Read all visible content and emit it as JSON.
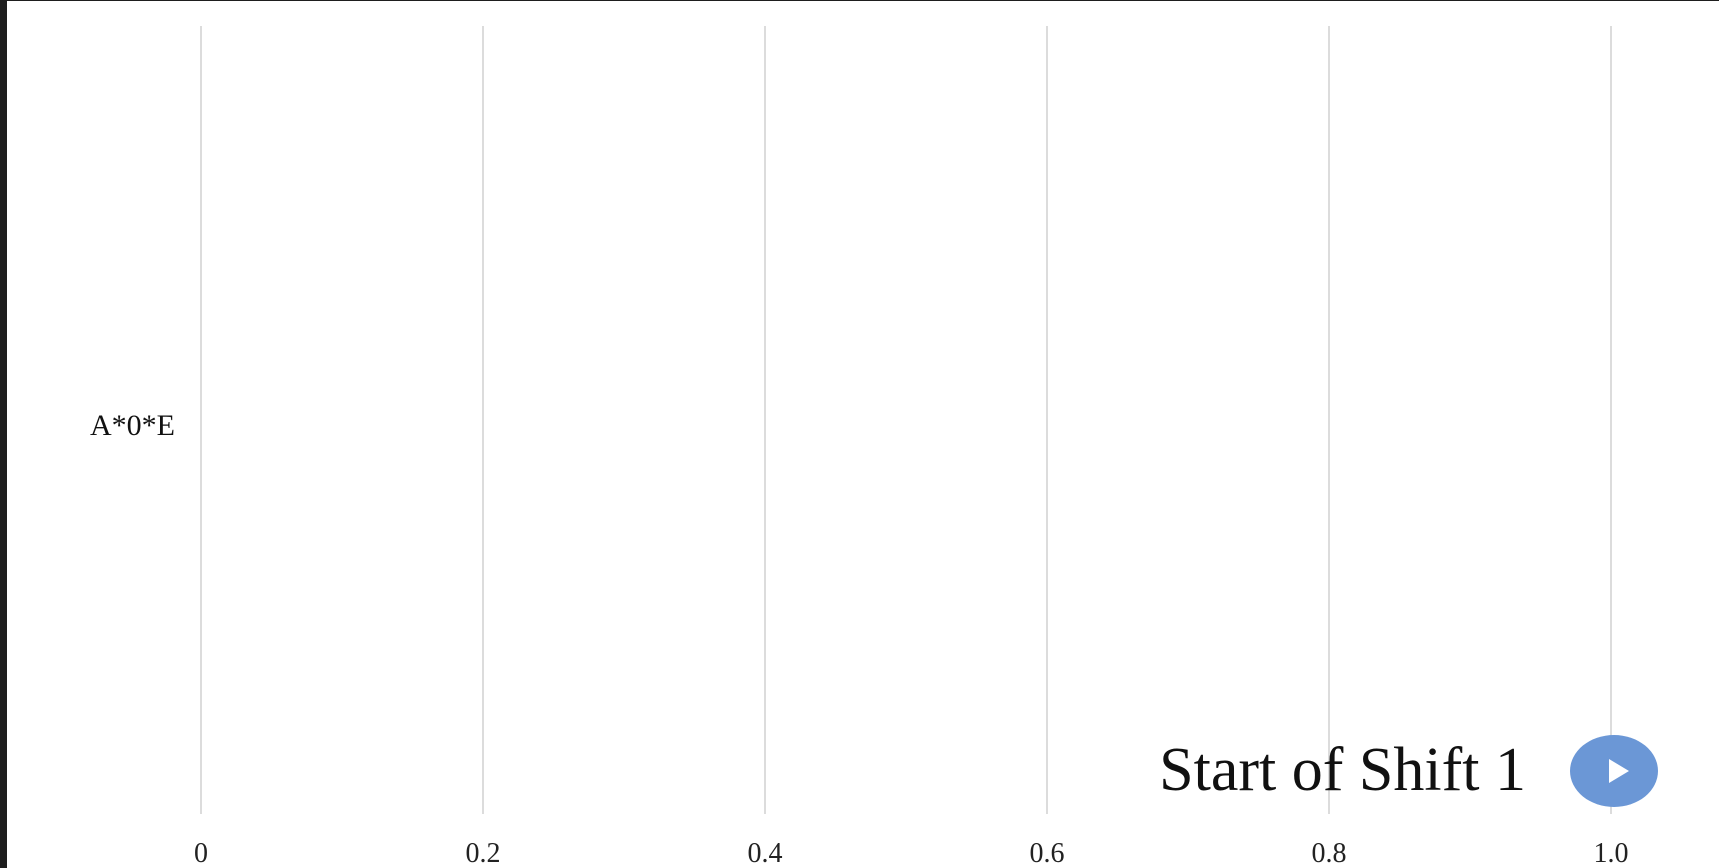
{
  "chart_data": {
    "type": "bar",
    "orientation": "horizontal",
    "categories": [
      "A*0*E"
    ],
    "values": [
      0
    ],
    "xlim": [
      0,
      1.0
    ],
    "x_ticks": [
      0,
      0.2,
      0.4,
      0.6,
      0.8,
      1.0
    ],
    "x_tick_labels": [
      "0",
      "0.2",
      "0.4",
      "0.6",
      "0.8",
      "1.0"
    ],
    "grid": true,
    "title": "",
    "xlabel": "",
    "ylabel": ""
  },
  "annotation": {
    "shift_label": "Start of Shift 1"
  },
  "controls": {
    "play_icon": "play-icon"
  },
  "colors": {
    "background": "#ffffff",
    "frame": "#1e1e1e",
    "gridline": "#dcdcdc",
    "play_button": "#6b97d6"
  }
}
